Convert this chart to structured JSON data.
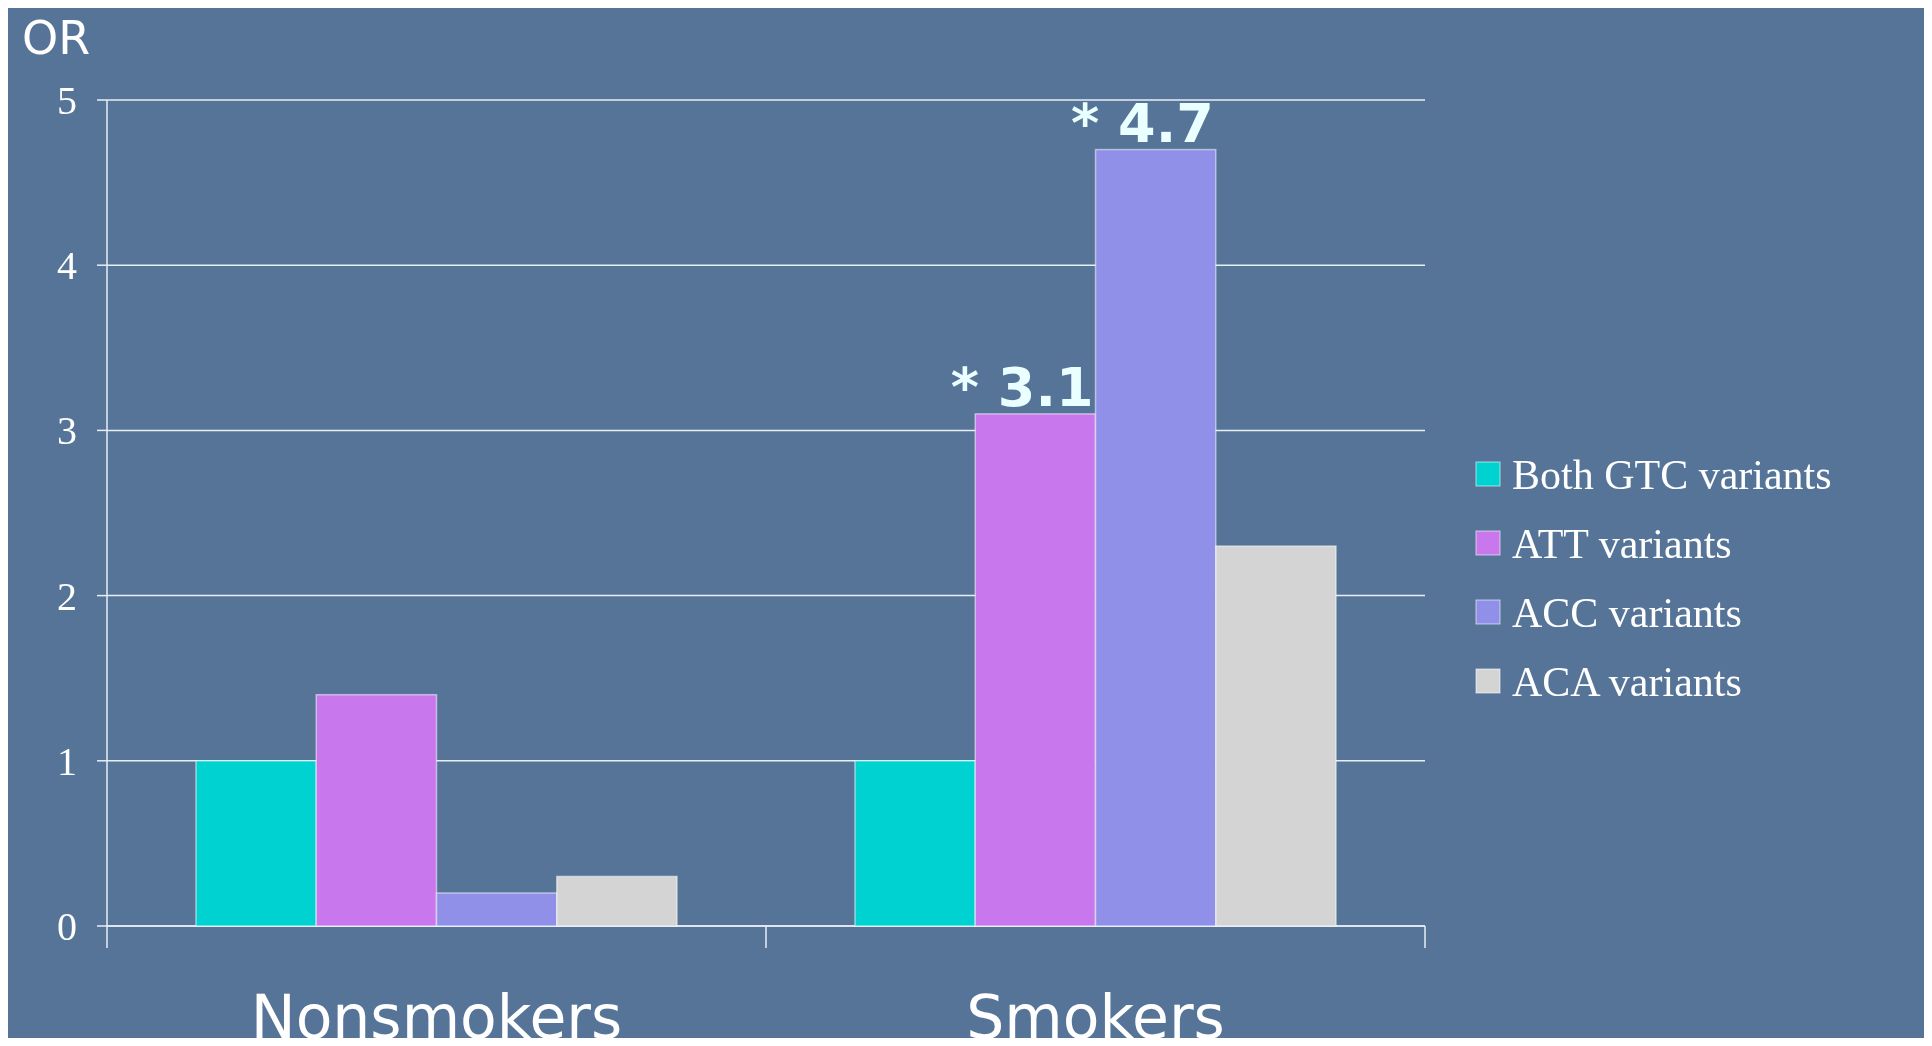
{
  "chart_data": {
    "type": "bar",
    "ylabel": "OR",
    "categories": [
      "Nonsmokers",
      "Smokers"
    ],
    "series": [
      {
        "name": "Both GTC variants",
        "color": "#00d2d2",
        "values": [
          1,
          1
        ]
      },
      {
        "name": "ATT variants",
        "color": "#c878ec",
        "values": [
          1.4,
          3.1
        ],
        "value_labels": [
          null,
          "* 3.1"
        ]
      },
      {
        "name": "ACC variants",
        "color": "#9090e8",
        "values": [
          0.2,
          4.7
        ],
        "value_labels": [
          null,
          "* 4.7"
        ]
      },
      {
        "name": "ACA variants",
        "color": "#d4d4d4",
        "values": [
          0.3,
          2.3
        ]
      }
    ],
    "ylim": [
      0,
      5
    ],
    "yticks": [
      0,
      1,
      2,
      3,
      4,
      5
    ],
    "grid": "y",
    "legend": "right"
  }
}
